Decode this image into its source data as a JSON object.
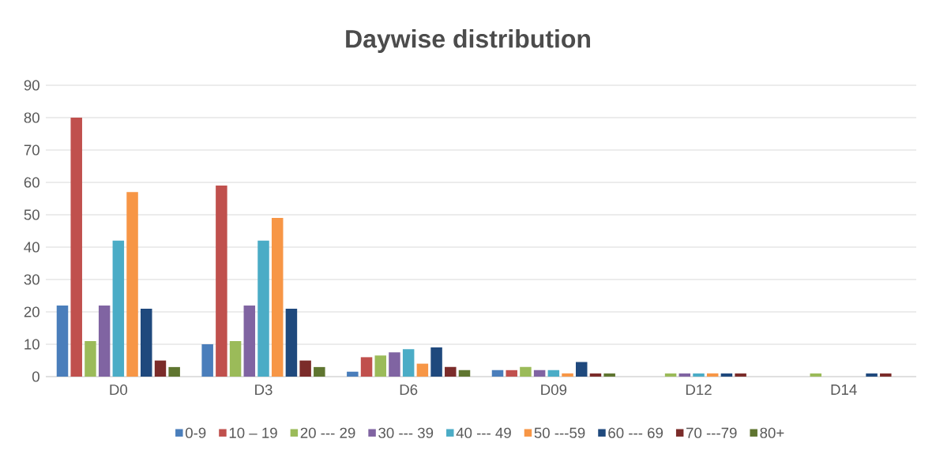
{
  "chart_data": {
    "type": "bar",
    "title": "Daywise distribution",
    "categories": [
      "D0",
      "D3",
      "D6",
      "D09",
      "D12",
      "D14"
    ],
    "series": [
      {
        "name": "0-9",
        "color": "#4a7ebb",
        "values": [
          22,
          10,
          1.5,
          2,
          0,
          0
        ]
      },
      {
        "name": "10   – 19",
        "color": "#c0504d",
        "values": [
          80,
          59,
          6,
          2,
          0,
          0
        ]
      },
      {
        "name": "20 --- 29",
        "color": "#9bbb59",
        "values": [
          11,
          11,
          6.5,
          3,
          1,
          1
        ]
      },
      {
        "name": "30 --- 39",
        "color": "#8064a2",
        "values": [
          22,
          22,
          7.5,
          2,
          1,
          0
        ]
      },
      {
        "name": "40 --- 49",
        "color": "#4bacc6",
        "values": [
          42,
          42,
          8.5,
          2,
          1,
          0
        ]
      },
      {
        "name": "50 ---59",
        "color": "#f79646",
        "values": [
          57,
          49,
          4,
          1,
          1,
          0
        ]
      },
      {
        "name": "60 --- 69",
        "color": "#1f497d",
        "values": [
          21,
          21,
          9,
          4.5,
          1,
          1
        ]
      },
      {
        "name": "70 ---79",
        "color": "#7b2c2a",
        "values": [
          5,
          5,
          3,
          1,
          1,
          1
        ]
      },
      {
        "name": "80+",
        "color": "#5f7530",
        "values": [
          3,
          3,
          2,
          1,
          0,
          0
        ]
      }
    ],
    "ylim": [
      0,
      90
    ],
    "yticks": [
      0,
      10,
      20,
      30,
      40,
      50,
      60,
      70,
      80,
      90
    ],
    "grid": "y",
    "legend": "bottom"
  }
}
